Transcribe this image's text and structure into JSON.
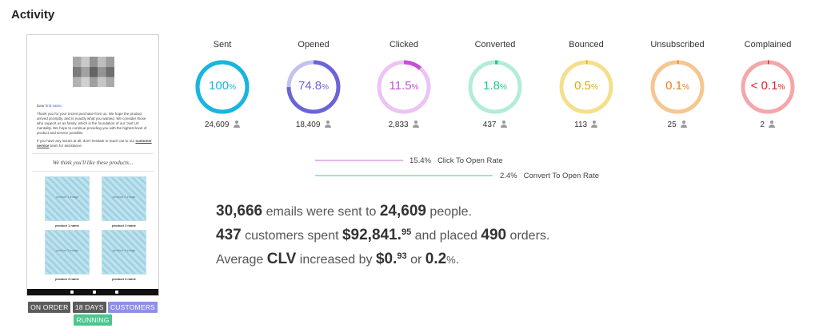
{
  "title": "Activity",
  "preview": {
    "greeting_prefix": "Dear ",
    "greeting_name": "first name,",
    "body_1": "Thank you for your recent purchase from us. We hope the product arrived promptly, and is exactly what you wanted. We consider those who support us as family, which is the foundation of our 'Just Us' mentality. We hope to continue providing you with the highest level of product and service possible.",
    "body_2_prefix": "If you have any issues at all, don't hesitate to reach out to our ",
    "body_2_link": "customer service",
    "body_2_suffix": " team for assistance.",
    "products_heading": "We think you'll like these products...",
    "products": [
      {
        "image_label": "product 1 image",
        "name": "product 1 name"
      },
      {
        "image_label": "product 2 image",
        "name": "product 2 name"
      },
      {
        "image_label": "product 3 image",
        "name": "product 3 name"
      },
      {
        "image_label": "product 4 image",
        "name": "product 4 name"
      }
    ]
  },
  "badges": {
    "on_order": "ON ORDER",
    "days": "18 DAYS",
    "customers": "CUSTOMERS",
    "running": "RUNNING"
  },
  "stats": [
    {
      "label": "Sent",
      "value": "100",
      "unit": "%",
      "count": "24,609",
      "color": "#1ab4e0",
      "track": "#1ab4e0",
      "fraction": 1.0
    },
    {
      "label": "Opened",
      "value": "74.8",
      "unit": "%",
      "count": "18,409",
      "color": "#6a64d6",
      "track": "#c4c1ef",
      "fraction": 0.748
    },
    {
      "label": "Clicked",
      "value": "11.5",
      "unit": "%",
      "count": "2,833",
      "color": "#c64fd8",
      "track": "#ecc4f3",
      "fraction": 0.115
    },
    {
      "label": "Converted",
      "value": "1.8",
      "unit": "%",
      "count": "437",
      "color": "#20c98c",
      "track": "#b3ecd9",
      "fraction": 0.018
    },
    {
      "label": "Bounced",
      "value": "0.5",
      "unit": "%",
      "count": "113",
      "color": "#e0a80c",
      "track": "#f5df8c",
      "fraction": 0.005
    },
    {
      "label": "Unsubscribed",
      "value": "0.1",
      "unit": "%",
      "count": "25",
      "color": "#e8801a",
      "track": "#f6c691",
      "fraction": 0.001
    },
    {
      "label": "Complained",
      "value": "< 0.1",
      "unit": "%",
      "count": "2",
      "color": "#e3232c",
      "track": "#f4a7ab",
      "fraction": 0.0005
    }
  ],
  "rates": [
    {
      "pct": "15.4%",
      "label": "Click To Open Rate",
      "color": "#e7b6ee"
    },
    {
      "pct": "2.4%",
      "label": "Convert To Open Rate",
      "color": "#9ee6cc"
    }
  ],
  "summary": {
    "line1": {
      "emails": "30,666",
      "t1": " emails were sent to ",
      "people": "24,609",
      "t2": " people."
    },
    "line2": {
      "customers": "437",
      "t1": " customers spent ",
      "amount": "$92,841.",
      "cents": "95",
      "t2": " and placed ",
      "orders": "490",
      "t3": " orders."
    },
    "line3": {
      "t1": "Average ",
      "clv": "CLV",
      "t2": " increased by ",
      "amount": "$0.",
      "cents": "93",
      "t3": " or ",
      "pct": "0.2",
      "pct_unit": "%",
      "t4": "."
    }
  }
}
